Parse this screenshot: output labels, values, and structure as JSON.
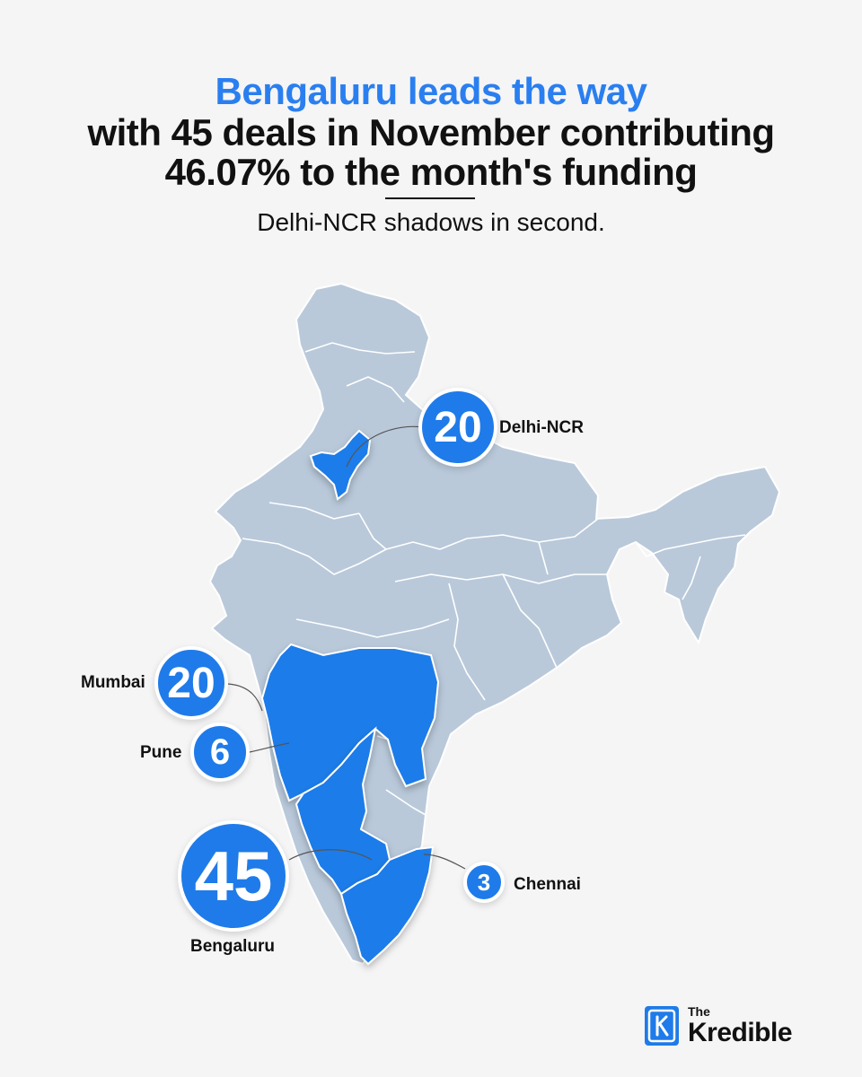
{
  "headline": {
    "accent": "Bengaluru leads the way",
    "line1": "with 45 deals in November contributing",
    "line2": "46.07% to the month's funding"
  },
  "subtitle": "Delhi-NCR shadows in second.",
  "cities": {
    "delhi": {
      "count": "20",
      "label": "Delhi-NCR"
    },
    "mumbai": {
      "count": "20",
      "label": "Mumbai"
    },
    "pune": {
      "count": "6",
      "label": "Pune"
    },
    "bengaluru": {
      "count": "45",
      "label": "Bengaluru"
    },
    "chennai": {
      "count": "3",
      "label": "Chennai"
    }
  },
  "brand": {
    "small": "The",
    "big": "Kredible",
    "logo_icon": "k-logo-icon"
  },
  "colors": {
    "accent": "#2a7ff0",
    "highlight": "#1f7be9",
    "map": "#b9c9da",
    "background": "#f5f5f6"
  }
}
